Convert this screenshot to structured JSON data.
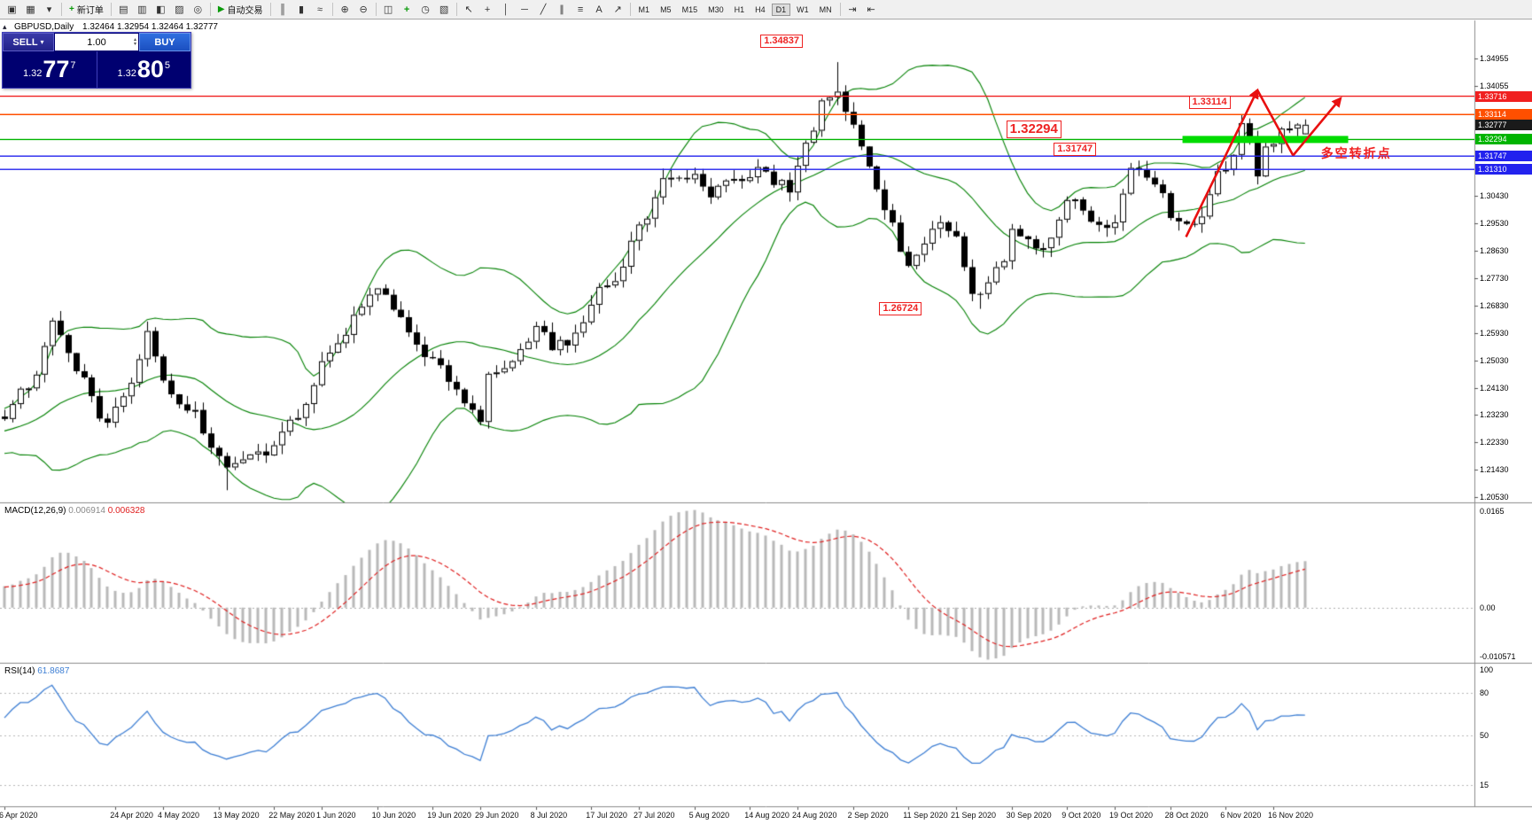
{
  "toolbar": {
    "groups": [
      {
        "items": [
          {
            "name": "new-chart-icon",
            "glyph": "▣"
          },
          {
            "name": "profiles-icon",
            "glyph": "▦"
          },
          {
            "name": "chart-list-dropdown-icon",
            "glyph": "▾"
          }
        ]
      },
      {
        "items": [
          {
            "name": "new-order-button",
            "glyph": "+",
            "glyph_color": "#0a9a0a",
            "label": "新订单"
          }
        ]
      },
      {
        "items": [
          {
            "name": "market-watch-icon",
            "glyph": "▤"
          },
          {
            "name": "data-window-icon",
            "glyph": "▥"
          },
          {
            "name": "navigator-icon",
            "glyph": "◧"
          },
          {
            "name": "terminal-icon",
            "glyph": "▨"
          },
          {
            "name": "strategy-tester-icon",
            "glyph": "◎"
          }
        ]
      },
      {
        "items": [
          {
            "name": "autotrading-button",
            "glyph": "▶",
            "glyph_color": "#0a9a0a",
            "label": "自动交易"
          }
        ]
      },
      {
        "items": [
          {
            "name": "bar-chart-icon",
            "glyph": "║"
          },
          {
            "name": "candlestick-chart-icon",
            "glyph": "▮"
          },
          {
            "name": "line-chart-icon",
            "glyph": "≈"
          }
        ]
      },
      {
        "items": [
          {
            "name": "zoom-in-icon",
            "glyph": "⊕"
          },
          {
            "name": "zoom-out-icon",
            "glyph": "⊖"
          }
        ]
      },
      {
        "items": [
          {
            "name": "tile-windows-icon",
            "glyph": "◫"
          },
          {
            "name": "indicators-icon",
            "glyph": "+",
            "glyph_color": "#0a9a0a"
          },
          {
            "name": "periods-icon",
            "glyph": "◷"
          },
          {
            "name": "templates-icon",
            "glyph": "▧"
          }
        ]
      },
      {
        "items": [
          {
            "name": "cursor-icon",
            "glyph": "↖"
          },
          {
            "name": "crosshair-icon",
            "glyph": "+"
          },
          {
            "name": "vertical-line-icon",
            "glyph": "│"
          },
          {
            "name": "horizontal-line-icon",
            "glyph": "─"
          },
          {
            "name": "trendline-icon",
            "glyph": "╱"
          },
          {
            "name": "equidistant-channel-icon",
            "glyph": "∥"
          },
          {
            "name": "fibonacci-icon",
            "glyph": "≡"
          },
          {
            "name": "text-tool-icon",
            "glyph": "A"
          },
          {
            "name": "arrows-tool-icon",
            "glyph": "↗"
          }
        ]
      }
    ],
    "timeframes": [
      "M1",
      "M5",
      "M15",
      "M30",
      "H1",
      "H4",
      "D1",
      "W1",
      "MN"
    ],
    "active_timeframe": "D1",
    "right_icons": [
      {
        "name": "auto-scroll-icon",
        "glyph": "⇥"
      },
      {
        "name": "chart-shift-icon",
        "glyph": "⇤"
      }
    ]
  },
  "chart": {
    "symbol": "GBPUSD,Daily",
    "ohlc_text": "1.32464 1.32954 1.32464 1.32777"
  },
  "trade_panel": {
    "sell_label": "SELL",
    "buy_label": "BUY",
    "volume": "1.00",
    "bid": {
      "prefix": "1.32",
      "big": "77",
      "sup": "7"
    },
    "ask": {
      "prefix": "1.32",
      "big": "80",
      "sup": "5"
    }
  },
  "price_scale": {
    "ticks": [
      "1.34955",
      "1.34055",
      "1.30430",
      "1.29530",
      "1.28630",
      "1.27730",
      "1.26830",
      "1.25930",
      "1.25030",
      "1.24130",
      "1.23230",
      "1.22330",
      "1.21430",
      "1.20530"
    ],
    "badges": [
      {
        "value": "1.33716",
        "color": "#f02020"
      },
      {
        "value": "1.33114",
        "color": "#ff4f00"
      },
      {
        "value": "1.32777",
        "color": "#1a1a1a"
      },
      {
        "value": "1.32294",
        "color": "#00b400"
      },
      {
        "value": "1.31747",
        "color": "#2222ee"
      },
      {
        "value": "1.31310",
        "color": "#2222ee"
      }
    ]
  },
  "macd_panel": {
    "title": "MACD(12,26,9)",
    "value_main": "0.006914",
    "value_signal": "0.006328",
    "scale": {
      "top": "0.0165",
      "zero": "0.00",
      "bottom": "-0.010571"
    }
  },
  "rsi_panel": {
    "title": "RSI(14)",
    "value": "61.8687",
    "scale": [
      {
        "label": "100",
        "level": 100
      },
      {
        "label": "80",
        "level": 80
      },
      {
        "label": "50",
        "level": 50
      },
      {
        "label": "15",
        "level": 15
      }
    ],
    "dotted_levels": [
      80,
      50,
      15
    ]
  },
  "annotations": {
    "boxes": [
      {
        "text": "1.34837",
        "bar": 96,
        "price": 1.3552,
        "large": false
      },
      {
        "text": "1.33114",
        "bar": 150,
        "price": 1.335,
        "large": false
      },
      {
        "text": "1.32294",
        "bar": 127,
        "price": 1.3262,
        "large": true
      },
      {
        "text": "1.31747",
        "bar": 133,
        "price": 1.3195,
        "large": false
      },
      {
        "text": "1.26724",
        "bar": 111,
        "price": 1.2672,
        "large": false
      }
    ],
    "note": {
      "text": "多空转折点",
      "color": "#f02020",
      "bar": 166,
      "price": 1.3215
    },
    "zone": {
      "price": 1.32294,
      "bar_start": 149,
      "bar_end": 169,
      "color": "#00dc00",
      "thickness": 8
    },
    "hlines": [
      {
        "price": 1.33716,
        "color": "#f02020"
      },
      {
        "price": 1.33114,
        "color": "#ff4f00"
      },
      {
        "price": 1.32294,
        "color": "#00b400"
      },
      {
        "price": 1.31747,
        "color": "#2222ee"
      },
      {
        "price": 1.3131,
        "color": "#2222ee"
      }
    ],
    "arrows": [
      {
        "bar1": 149,
        "price1": 1.2909,
        "bar2": 158,
        "price2": 1.3392,
        "head": true
      },
      {
        "bar1": 158,
        "price1": 1.3392,
        "bar2": 162.5,
        "price2": 1.3177,
        "head": false
      },
      {
        "bar1": 162.5,
        "price1": 1.3177,
        "bar2": 168.5,
        "price2": 1.3365,
        "head": true
      }
    ],
    "arrow_color": "#e81010"
  },
  "chart_data": {
    "type": "candlestick",
    "symbol": "GBPUSD",
    "timeframe": "Daily",
    "ohlc_current": {
      "open": 1.32464,
      "high": 1.32954,
      "low": 1.32464,
      "close": 1.32777
    },
    "ylim": [
      1.2036,
      1.3621
    ],
    "bars_total": 165,
    "bollinger": {
      "period": 20,
      "deviation": 2,
      "color": "#008000"
    },
    "macd": {
      "fast": 12,
      "slow": 26,
      "signal": 9,
      "values": [
        0.006914,
        0.006328
      ],
      "panel_range": [
        -0.010571,
        0.0165
      ]
    },
    "rsi": {
      "period": 14,
      "value": 61.8687
    },
    "extremes": [
      {
        "range": [
          100,
          108
        ],
        "type": "high",
        "value": 1.34837
      },
      {
        "range": [
          118,
          126
        ],
        "type": "low",
        "value": 1.26724
      },
      {
        "range": [
          26,
          36
        ],
        "type": "low",
        "value": 1.2076
      },
      {
        "range": [
          154,
          158
        ],
        "type": "high",
        "value": 1.33114
      }
    ],
    "close_waypoints": [
      [
        0,
        1.233
      ],
      [
        2,
        1.239
      ],
      [
        4,
        1.2455
      ],
      [
        6,
        1.2625
      ],
      [
        8,
        1.251
      ],
      [
        10,
        1.246
      ],
      [
        12,
        1.2295
      ],
      [
        14,
        1.234
      ],
      [
        16,
        1.244
      ],
      [
        18,
        1.2594
      ],
      [
        20,
        1.244
      ],
      [
        22,
        1.2361
      ],
      [
        24,
        1.233
      ],
      [
        26,
        1.2228
      ],
      [
        28,
        1.215
      ],
      [
        30,
        1.2175
      ],
      [
        32,
        1.219
      ],
      [
        34,
        1.221
      ],
      [
        36,
        1.232
      ],
      [
        38,
        1.2344
      ],
      [
        40,
        1.249
      ],
      [
        42,
        1.254
      ],
      [
        44,
        1.267
      ],
      [
        47,
        1.2745
      ],
      [
        49,
        1.266
      ],
      [
        51,
        1.2607
      ],
      [
        53,
        1.252
      ],
      [
        55,
        1.2468
      ],
      [
        57,
        1.242
      ],
      [
        59,
        1.234
      ],
      [
        60,
        1.2299
      ],
      [
        61,
        1.2476
      ],
      [
        63,
        1.247
      ],
      [
        65,
        1.253
      ],
      [
        67,
        1.261
      ],
      [
        69,
        1.255
      ],
      [
        71,
        1.2567
      ],
      [
        73,
        1.2635
      ],
      [
        75,
        1.2729
      ],
      [
        77,
        1.278
      ],
      [
        79,
        1.288
      ],
      [
        81,
        1.298
      ],
      [
        83,
        1.3085
      ],
      [
        85,
        1.31
      ],
      [
        87,
        1.3113
      ],
      [
        89,
        1.305
      ],
      [
        91,
        1.3075
      ],
      [
        93,
        1.3085
      ],
      [
        95,
        1.312
      ],
      [
        97,
        1.3096
      ],
      [
        99,
        1.3065
      ],
      [
        101,
        1.32
      ],
      [
        103,
        1.3349
      ],
      [
        105,
        1.34
      ],
      [
        107,
        1.328
      ],
      [
        109,
        1.316
      ],
      [
        111,
        1.3003
      ],
      [
        113,
        1.288
      ],
      [
        114,
        1.2797
      ],
      [
        116,
        1.29
      ],
      [
        118,
        1.297
      ],
      [
        120,
        1.292
      ],
      [
        122,
        1.2722
      ],
      [
        124,
        1.2746
      ],
      [
        126,
        1.284
      ],
      [
        127,
        1.2921
      ],
      [
        129,
        1.29
      ],
      [
        131,
        1.2873
      ],
      [
        133,
        1.295
      ],
      [
        134,
        1.3036
      ],
      [
        136,
        1.3012
      ],
      [
        138,
        1.293
      ],
      [
        140,
        1.295
      ],
      [
        142,
        1.3144
      ],
      [
        144,
        1.31
      ],
      [
        146,
        1.304
      ],
      [
        147,
        1.2987
      ],
      [
        149,
        1.2947
      ],
      [
        151,
        1.2986
      ],
      [
        153,
        1.312
      ],
      [
        155,
        1.3163
      ],
      [
        156,
        1.3272
      ],
      [
        157,
        1.3222
      ],
      [
        158,
        1.3114
      ],
      [
        159,
        1.319
      ],
      [
        160,
        1.3205
      ],
      [
        161,
        1.325
      ],
      [
        162,
        1.327
      ],
      [
        163,
        1.326
      ],
      [
        164,
        1.32777
      ]
    ],
    "x_labels": [
      {
        "text": "6 Apr 2020",
        "bar": 0
      },
      {
        "text": "24 Apr 2020",
        "bar": 14
      },
      {
        "text": "4 May 2020",
        "bar": 20
      },
      {
        "text": "13 May 2020",
        "bar": 27
      },
      {
        "text": "22 May 2020",
        "bar": 34
      },
      {
        "text": "1 Jun 2020",
        "bar": 40
      },
      {
        "text": "10 Jun 2020",
        "bar": 47
      },
      {
        "text": "19 Jun 2020",
        "bar": 54
      },
      {
        "text": "29 Jun 2020",
        "bar": 60
      },
      {
        "text": "8 Jul 2020",
        "bar": 67
      },
      {
        "text": "17 Jul 2020",
        "bar": 74
      },
      {
        "text": "27 Jul 2020",
        "bar": 80
      },
      {
        "text": "5 Aug 2020",
        "bar": 87
      },
      {
        "text": "14 Aug 2020",
        "bar": 94
      },
      {
        "text": "24 Aug 2020",
        "bar": 100
      },
      {
        "text": "2 Sep 2020",
        "bar": 107
      },
      {
        "text": "11 Sep 2020",
        "bar": 114
      },
      {
        "text": "21 Sep 2020",
        "bar": 120
      },
      {
        "text": "30 Sep 2020",
        "bar": 127
      },
      {
        "text": "9 Oct 2020",
        "bar": 134
      },
      {
        "text": "19 Oct 2020",
        "bar": 140
      },
      {
        "text": "28 Oct 2020",
        "bar": 147
      },
      {
        "text": "6 Nov 2020",
        "bar": 154
      },
      {
        "text": "16 Nov 2020",
        "bar": 160
      }
    ]
  }
}
